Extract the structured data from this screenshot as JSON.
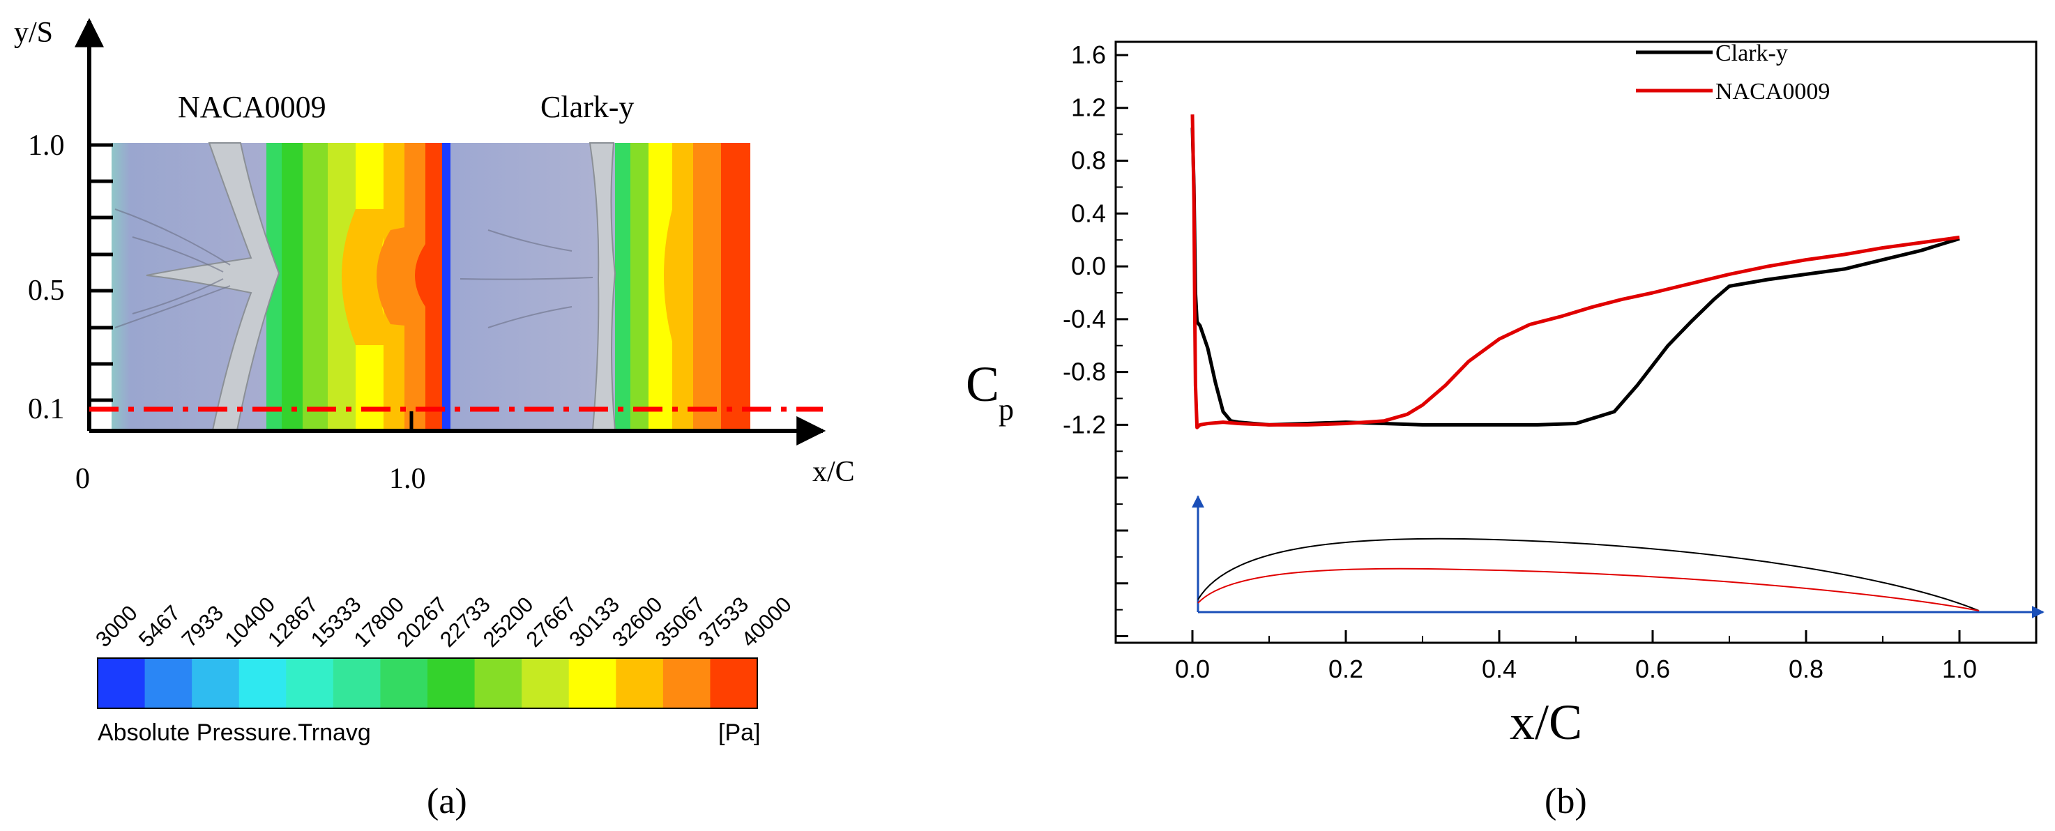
{
  "panel_a": {
    "caption": "(a)",
    "y_axis_label": "y/S",
    "x_axis_label": "x/C",
    "x_ticks": [
      "0",
      "1.0"
    ],
    "y_ticks": [
      "1.0",
      "0.5",
      "0.1"
    ],
    "airfoil_titles": [
      "NACA0009",
      "Clark-y"
    ],
    "colorbar": {
      "title": "Absolute Pressure.Trnavg",
      "unit": "[Pa]",
      "levels": [
        "3000",
        "5467",
        "7933",
        "10400",
        "12867",
        "15333",
        "17800",
        "20267",
        "22733",
        "25200",
        "27667",
        "30133",
        "32600",
        "35067",
        "37533",
        "40000"
      ],
      "colors": [
        "#1a3cff",
        "#2a86f5",
        "#2fbcf0",
        "#2fe8f0",
        "#33efc8",
        "#34e69a",
        "#34da62",
        "#34d22c",
        "#86dd26",
        "#c6ea22",
        "#ffff00",
        "#ffc000",
        "#ff8a10",
        "#ff4000"
      ]
    },
    "section_line": {
      "y_over_S": 0.1,
      "color": "#ff0000"
    }
  },
  "panel_b": {
    "caption": "(b)",
    "ylabel_main": "C",
    "ylabel_sub": "p",
    "xlabel": "x/C"
  },
  "chart_data": {
    "type": "line",
    "title": "",
    "xlabel": "x/C",
    "ylabel": "Cp",
    "xlim": [
      -0.1,
      1.1
    ],
    "ylim": [
      -2.85,
      1.7
    ],
    "x_ticks": [
      "0.0",
      "0.2",
      "0.4",
      "0.6",
      "0.8",
      "1.0"
    ],
    "y_ticks": [
      "1.6",
      "1.2",
      "0.8",
      "0.4",
      "0.0",
      "-0.4",
      "-0.8",
      "-1.2"
    ],
    "legend_position": "top-right",
    "series": [
      {
        "name": "Clark-y",
        "color": "#000000",
        "x": [
          0.0,
          0.002,
          0.004,
          0.006,
          0.01,
          0.02,
          0.03,
          0.04,
          0.05,
          0.06,
          0.08,
          0.1,
          0.15,
          0.2,
          0.25,
          0.3,
          0.35,
          0.4,
          0.45,
          0.5,
          0.55,
          0.58,
          0.6,
          0.62,
          0.65,
          0.68,
          0.7,
          0.75,
          0.8,
          0.85,
          0.9,
          0.95,
          1.0
        ],
        "y": [
          1.05,
          0.6,
          -0.2,
          -0.42,
          -0.45,
          -0.62,
          -0.88,
          -1.1,
          -1.17,
          -1.18,
          -1.19,
          -1.2,
          -1.19,
          -1.18,
          -1.19,
          -1.2,
          -1.2,
          -1.2,
          -1.2,
          -1.19,
          -1.1,
          -0.9,
          -0.75,
          -0.6,
          -0.42,
          -0.25,
          -0.15,
          -0.1,
          -0.06,
          -0.02,
          0.05,
          0.12,
          0.21
        ]
      },
      {
        "name": "NACA0009",
        "color": "#e00000",
        "x": [
          0.0,
          0.002,
          0.003,
          0.004,
          0.006,
          0.01,
          0.02,
          0.04,
          0.06,
          0.1,
          0.15,
          0.2,
          0.25,
          0.28,
          0.3,
          0.33,
          0.36,
          0.4,
          0.44,
          0.48,
          0.52,
          0.56,
          0.6,
          0.65,
          0.7,
          0.75,
          0.8,
          0.85,
          0.9,
          0.95,
          1.0
        ],
        "y": [
          1.15,
          0.5,
          -0.3,
          -0.9,
          -1.22,
          -1.2,
          -1.19,
          -1.18,
          -1.19,
          -1.2,
          -1.2,
          -1.19,
          -1.17,
          -1.12,
          -1.05,
          -0.9,
          -0.72,
          -0.55,
          -0.44,
          -0.38,
          -0.31,
          -0.25,
          -0.2,
          -0.13,
          -0.06,
          0.0,
          0.05,
          0.09,
          0.14,
          0.18,
          0.22
        ]
      }
    ],
    "inset_profiles": [
      {
        "name": "Clark-y profile",
        "color": "#000000",
        "max_thickness_rel": 0.13,
        "max_at_x": 0.3
      },
      {
        "name": "NACA0009 profile",
        "color": "#e00000",
        "max_thickness_rel": 0.08,
        "max_at_x": 0.3
      }
    ]
  }
}
